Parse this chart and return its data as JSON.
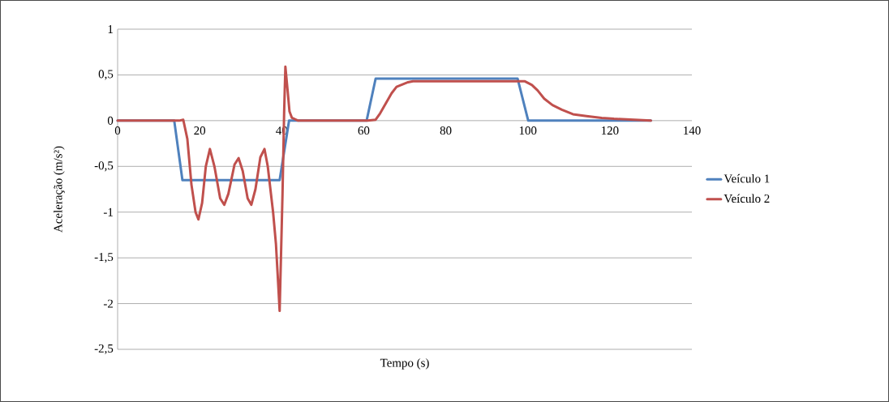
{
  "chart_data": {
    "type": "line",
    "xlabel": "Tempo (s)",
    "ylabel": "Aceleração (m/s²)",
    "xlim": [
      0,
      140
    ],
    "ylim": [
      -2.5,
      1
    ],
    "xticks": [
      0,
      20,
      40,
      60,
      80,
      100,
      120,
      140
    ],
    "yticks": [
      1,
      {
        "value": 0.5,
        "label": "0,5"
      },
      0,
      {
        "value": -0.5,
        "label": "-0,5"
      },
      -1,
      {
        "value": -1.5,
        "label": "-1,5"
      },
      -2,
      {
        "value": -2.5,
        "label": "-2,5"
      }
    ],
    "grid": "y",
    "legend": "right",
    "marker": "none",
    "line_style": "solid",
    "series": [
      {
        "name": "Veículo 1",
        "color": "#4f81bd",
        "x": [
          0,
          13.8,
          15.8,
          39.5,
          41.8,
          60.7,
          62.9,
          97.5,
          100.1,
          130
        ],
        "values": [
          0,
          0,
          -0.65,
          -0.65,
          0,
          0,
          0.46,
          0.46,
          0,
          0
        ]
      },
      {
        "name": "Veículo 2",
        "color": "#c0504d",
        "x": [
          0,
          15,
          16,
          17,
          18,
          19,
          19.7,
          20.6,
          21.5,
          22.5,
          23.6,
          25,
          26,
          27,
          28.5,
          29.5,
          30.5,
          31.7,
          32.6,
          33.6,
          34.8,
          35.8,
          36.6,
          37.9,
          38.6,
          39.1,
          39.5,
          40.2,
          40.6,
          40.9,
          41.4,
          41.9,
          42.5,
          44,
          61,
          62.9,
          64,
          66.8,
          68,
          70.8,
          72,
          98,
          99.3,
          101,
          102.4,
          104,
          106,
          108.3,
          111,
          114.3,
          118,
          121,
          126,
          130
        ],
        "values": [
          0,
          0,
          0.01,
          -0.2,
          -0.7,
          -1.0,
          -1.08,
          -0.9,
          -0.5,
          -0.31,
          -0.5,
          -0.85,
          -0.92,
          -0.8,
          -0.48,
          -0.41,
          -0.55,
          -0.85,
          -0.92,
          -0.75,
          -0.4,
          -0.31,
          -0.5,
          -1.0,
          -1.35,
          -1.75,
          -2.08,
          -0.8,
          0.1,
          0.59,
          0.35,
          0.1,
          0.03,
          0,
          0,
          0.01,
          0.08,
          0.3,
          0.37,
          0.42,
          0.43,
          0.43,
          0.43,
          0.39,
          0.33,
          0.24,
          0.17,
          0.12,
          0.07,
          0.05,
          0.03,
          0.02,
          0.01,
          0
        ]
      }
    ]
  }
}
